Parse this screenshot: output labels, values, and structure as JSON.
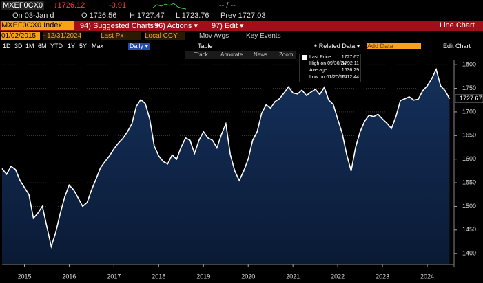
{
  "header": {
    "ticker": "MXEF0CX0",
    "last": "↓1726.12",
    "change": "-0.91",
    "dashes": "-- / --",
    "date": "On 03-Jan d",
    "open": "O 1726.56",
    "high": "H 1727.47",
    "low": "L 1723.76",
    "prev": "Prev 1727.03"
  },
  "command_bar": {
    "security": "MXEF0CX0 Index",
    "suggested": "94) Suggested Charts ▾",
    "actions": "96) Actions ▾",
    "edit": "97) Edit ▾",
    "chart_type": "Line Chart"
  },
  "settings_bar": {
    "start": "01/02/2015",
    "end": "- 12/31/2024",
    "field": "Last Px",
    "currency": "Local CCY",
    "mov_avgs": "Mov Avgs",
    "key_events": "Key Events"
  },
  "range_bar": {
    "ranges": [
      "1D",
      "3D",
      "1M",
      "6M",
      "YTD",
      "1Y",
      "5Y",
      "Max"
    ],
    "period": "Daily ▾",
    "table": "Table",
    "related": "+ Related Data ▾",
    "add_data": "Add Data",
    "edit_chart": "Edit Chart"
  },
  "tools": [
    "Track",
    "Annotate",
    "News",
    "Zoom"
  ],
  "chart_data": {
    "type": "line",
    "x": [
      2015,
      2015.1,
      2015.2,
      2015.3,
      2015.4,
      2015.5,
      2015.6,
      2015.7,
      2015.8,
      2015.9,
      2016,
      2016.1,
      2016.2,
      2016.3,
      2016.4,
      2016.5,
      2016.6,
      2016.7,
      2016.8,
      2016.9,
      2017,
      2017.1,
      2017.2,
      2017.3,
      2017.4,
      2017.5,
      2017.6,
      2017.7,
      2017.8,
      2017.9,
      2018,
      2018.1,
      2018.2,
      2018.3,
      2018.4,
      2018.5,
      2018.6,
      2018.7,
      2018.8,
      2018.9,
      2019,
      2019.1,
      2019.2,
      2019.3,
      2019.4,
      2019.5,
      2019.6,
      2019.7,
      2019.8,
      2019.9,
      2020,
      2020.1,
      2020.2,
      2020.3,
      2020.4,
      2020.5,
      2020.6,
      2020.7,
      2020.8,
      2020.9,
      2021,
      2021.1,
      2021.2,
      2021.3,
      2021.4,
      2021.5,
      2021.6,
      2021.7,
      2021.8,
      2021.9,
      2022,
      2022.1,
      2022.2,
      2022.3,
      2022.4,
      2022.5,
      2022.6,
      2022.7,
      2022.8,
      2022.9,
      2023,
      2023.1,
      2023.2,
      2023.3,
      2023.4,
      2023.5,
      2023.6,
      2023.7,
      2023.8,
      2023.9,
      2024,
      2024.1,
      2024.2,
      2024.3,
      2024.4,
      2024.5,
      2024.6,
      2024.7,
      2024.8,
      2024.9,
      2025
    ],
    "series": [
      {
        "name": "Last Price",
        "color": "#ffffff",
        "values": [
          1580,
          1568,
          1585,
          1578,
          1555,
          1540,
          1525,
          1475,
          1486,
          1500,
          1457,
          1415,
          1445,
          1485,
          1520,
          1545,
          1535,
          1518,
          1500,
          1508,
          1535,
          1558,
          1582,
          1595,
          1607,
          1622,
          1634,
          1644,
          1658,
          1675,
          1712,
          1726,
          1718,
          1685,
          1628,
          1607,
          1595,
          1590,
          1609,
          1600,
          1625,
          1645,
          1640,
          1612,
          1640,
          1658,
          1645,
          1640,
          1624,
          1652,
          1675,
          1610,
          1575,
          1555,
          1575,
          1600,
          1640,
          1658,
          1697,
          1715,
          1708,
          1722,
          1728,
          1740,
          1753,
          1740,
          1738,
          1746,
          1735,
          1742,
          1748,
          1737,
          1752,
          1725,
          1716,
          1685,
          1655,
          1610,
          1575,
          1625,
          1658,
          1680,
          1693,
          1690,
          1695,
          1685,
          1676,
          1665,
          1690,
          1724,
          1728,
          1732,
          1725,
          1727,
          1745,
          1755,
          1770,
          1790,
          1755,
          1745,
          1728
        ]
      }
    ],
    "xlim": [
      2015,
      2025.1
    ],
    "xticks": [
      {
        "value": 2015.5,
        "label": "2015"
      },
      {
        "value": 2016.5,
        "label": "2016"
      },
      {
        "value": 2017.5,
        "label": "2017"
      },
      {
        "value": 2018.5,
        "label": "2018"
      },
      {
        "value": 2019.5,
        "label": "2019"
      },
      {
        "value": 2020.5,
        "label": "2020"
      },
      {
        "value": 2021.5,
        "label": "2021"
      },
      {
        "value": 2022.5,
        "label": "2022"
      },
      {
        "value": 2023.5,
        "label": "2023"
      },
      {
        "value": 2024.5,
        "label": "2024"
      }
    ],
    "ylim": [
      1377,
      1809
    ],
    "yticks": [
      1400,
      1450,
      1500,
      1550,
      1600,
      1650,
      1700,
      1750,
      1800
    ],
    "grid": true,
    "last_label": "1727.67",
    "stats": [
      {
        "label": "High on 09/30/24",
        "value": "1792.11"
      },
      {
        "label": "Average",
        "value": "1636.29"
      },
      {
        "label": "Low on 01/20/16",
        "value": "1412.44"
      }
    ],
    "last_value_text": "1727.67"
  }
}
